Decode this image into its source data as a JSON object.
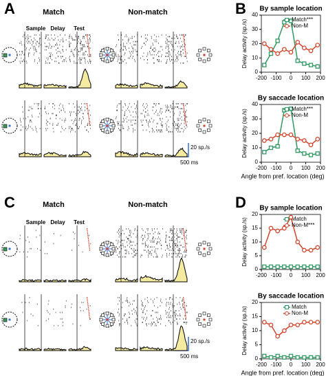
{
  "panel_labels": [
    "A",
    "B",
    "C",
    "D"
  ],
  "column_titles": [
    "Match",
    "Non-match"
  ],
  "epochs": [
    "Sample",
    "Delay",
    "Test"
  ],
  "scale_bar": {
    "rate": "20 sp./s",
    "time": "500 ms"
  },
  "chart_data": [
    {
      "type": "line",
      "title": "By sample location",
      "ylabel": "Delay activity (sp./s)",
      "x": [
        -180,
        -135,
        -90,
        -45,
        0,
        45,
        90,
        135,
        180
      ],
      "series": [
        {
          "name": "Match***",
          "color": "#2e9a62",
          "values": [
            5,
            13,
            22,
            35,
            36,
            8,
            6,
            5,
            4
          ]
        },
        {
          "name": "Non-M",
          "color": "#d2452c",
          "values": [
            20,
            16,
            13,
            16,
            14,
            21,
            17,
            15,
            19
          ]
        }
      ],
      "xlim": [
        -200,
        200
      ],
      "ylim": [
        0,
        40
      ],
      "xticks": [
        -200,
        -100,
        0,
        100,
        200
      ],
      "yticks": [
        0,
        10,
        20,
        30,
        40
      ],
      "legend": "upper right"
    },
    {
      "type": "line",
      "title": "By saccade location",
      "ylabel": "Delay activity (sp./s)",
      "xlabel": "Angle from pref. location (deg)",
      "x": [
        -180,
        -135,
        -90,
        -45,
        0,
        45,
        90,
        135,
        180
      ],
      "series": [
        {
          "name": "Match***",
          "color": "#2e9a62",
          "values": [
            7,
            10,
            11,
            36,
            37,
            8,
            6,
            5,
            6
          ]
        },
        {
          "name": "Non-M",
          "color": "#d2452c",
          "values": [
            15,
            16,
            19,
            19,
            19,
            16,
            15,
            12,
            16
          ]
        }
      ],
      "xlim": [
        -200,
        200
      ],
      "ylim": [
        0,
        40
      ],
      "xticks": [
        -200,
        -100,
        0,
        100,
        200
      ],
      "yticks": [
        0,
        10,
        20,
        30,
        40
      ],
      "legend": "upper right"
    },
    {
      "type": "line",
      "title": "By sample location",
      "ylabel": "Delay activity (sp./s)",
      "x": [
        -180,
        -135,
        -90,
        -45,
        0,
        45,
        90,
        135,
        180
      ],
      "series": [
        {
          "name": "Match",
          "color": "#2e9a62",
          "values": [
            1,
            1,
            1,
            1,
            1,
            1,
            1,
            1,
            1
          ]
        },
        {
          "name": "Non-M***",
          "color": "#d2452c",
          "values": [
            8,
            15,
            14,
            15,
            19,
            10,
            7,
            7,
            8
          ]
        }
      ],
      "xlim": [
        -200,
        200
      ],
      "ylim": [
        0,
        20
      ],
      "xticks": [
        -200,
        -100,
        0,
        100,
        200
      ],
      "yticks": [
        0,
        5,
        10,
        15,
        20
      ],
      "legend": "upper right"
    },
    {
      "type": "line",
      "title": "By saccade location",
      "ylabel": "Delay activity (sp./s)",
      "xlabel": "Angle from pref. location (deg)",
      "x": [
        -180,
        -135,
        -90,
        -45,
        0,
        45,
        90,
        135,
        180
      ],
      "series": [
        {
          "name": "Match",
          "color": "#2e9a62",
          "values": [
            1,
            0.5,
            1,
            0.5,
            1,
            0.5,
            0.5,
            0.5,
            0.5
          ]
        },
        {
          "name": "Non-M",
          "color": "#d2452c",
          "values": [
            13,
            12,
            8,
            10,
            12,
            12,
            13,
            13,
            13
          ]
        }
      ],
      "xlim": [
        -200,
        200
      ],
      "ylim": [
        0,
        20
      ],
      "xticks": [
        -200,
        -100,
        0,
        100,
        200
      ],
      "yticks": [
        0,
        5,
        10,
        15,
        20
      ],
      "legend": "upper right"
    }
  ]
}
